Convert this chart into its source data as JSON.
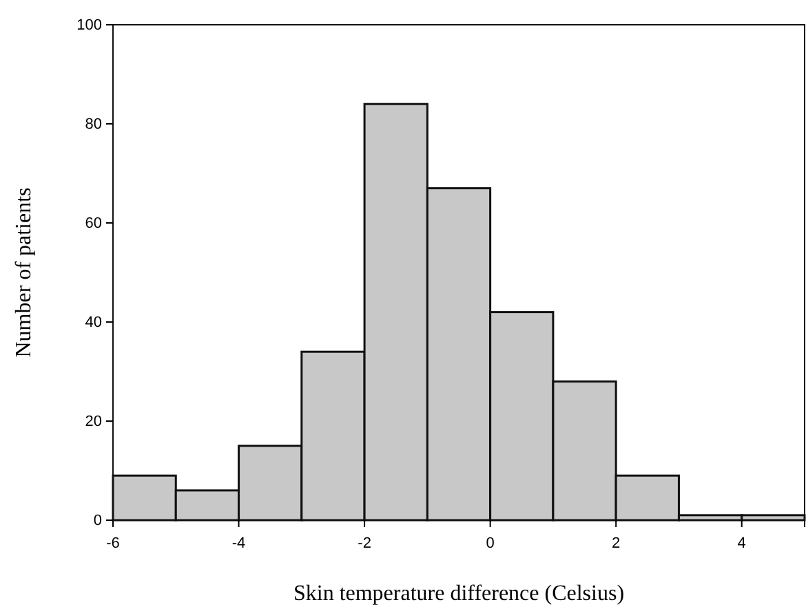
{
  "chart_data": {
    "type": "histogram",
    "xlabel": "Skin temperature difference (Celsius)",
    "ylabel": "Number of patients",
    "bins": [
      -6,
      -5,
      -4,
      -3,
      -2,
      -1,
      0,
      1,
      2,
      3,
      4,
      5
    ],
    "values": [
      9,
      6,
      15,
      34,
      84,
      67,
      42,
      28,
      9,
      1,
      1
    ],
    "color": "#c8c8c8",
    "xlim": [
      -6,
      5
    ],
    "xticks": [
      -6,
      -4,
      -2,
      0,
      2,
      4
    ],
    "ylim": [
      0,
      100
    ],
    "yticks": [
      0,
      20,
      40,
      60,
      80,
      100
    ]
  }
}
